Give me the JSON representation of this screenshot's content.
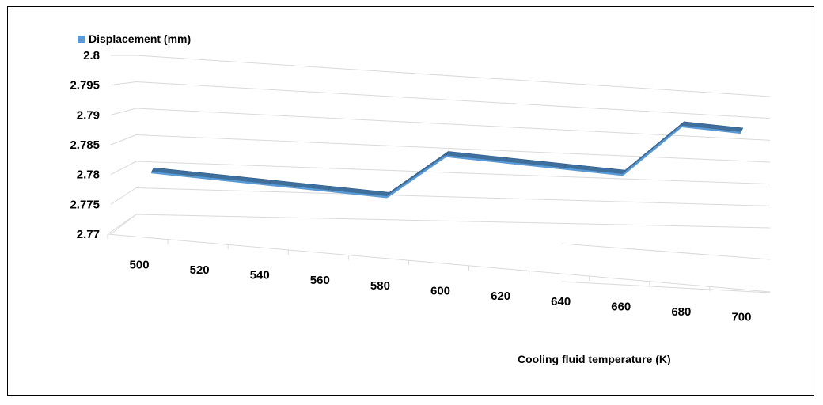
{
  "chart_data": {
    "type": "line",
    "style": "3d-ribbon",
    "title": "",
    "xlabel": "Cooling fluid temperature (K)",
    "ylabel": "",
    "categories": [
      "500",
      "520",
      "540",
      "560",
      "580",
      "600",
      "620",
      "640",
      "660",
      "680",
      "700"
    ],
    "series": [
      {
        "name": "Displacement (mm)",
        "color": "#5b9bd5",
        "values": [
          2.7795,
          2.779,
          2.7785,
          2.778,
          2.7775,
          2.7855,
          2.785,
          2.7845,
          2.784,
          2.7935,
          2.793
        ]
      }
    ],
    "y_ticks": [
      "2.8",
      "2.795",
      "2.79",
      "2.785",
      "2.78",
      "2.775",
      "2.77"
    ],
    "ylim": [
      2.77,
      2.8
    ],
    "grid": true,
    "legend_position": "top-left"
  }
}
